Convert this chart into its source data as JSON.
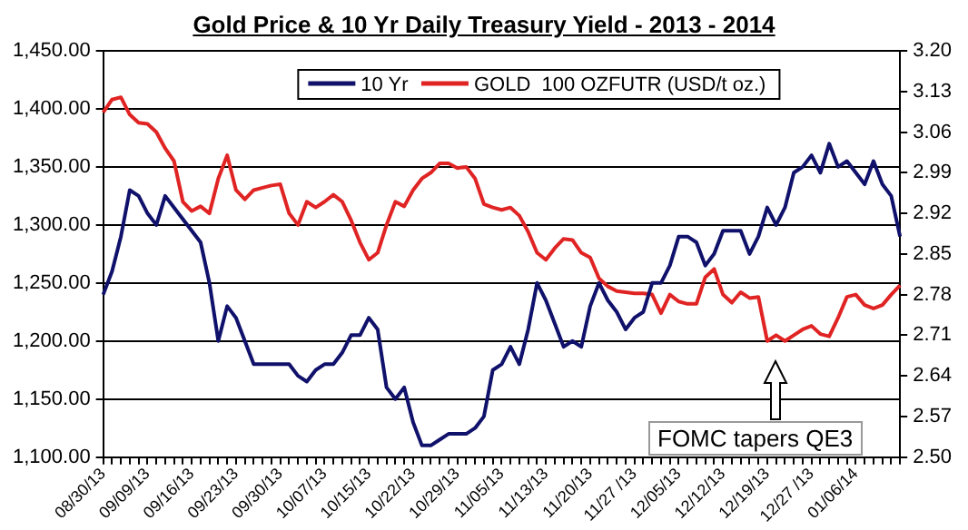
{
  "chart_data": {
    "type": "line",
    "title": "Gold Price & 10 Yr Daily Treasury Yield - 2013 -  2014",
    "categories": [
      "08/30/13",
      null,
      null,
      null,
      null,
      "09/09/13",
      null,
      null,
      null,
      null,
      "09/16/13",
      null,
      null,
      null,
      null,
      "09/23/13",
      null,
      null,
      null,
      null,
      "09/30/13",
      null,
      null,
      null,
      null,
      "10/07/13",
      null,
      null,
      null,
      null,
      "10/15/13",
      null,
      null,
      null,
      null,
      "10/22/13",
      null,
      null,
      null,
      null,
      "10/29/13",
      null,
      null,
      null,
      null,
      "11/05/13",
      null,
      null,
      null,
      null,
      "11/13/13",
      null,
      null,
      null,
      null,
      "11/20/13",
      null,
      null,
      null,
      null,
      "11/27 /13",
      null,
      null,
      null,
      null,
      "12/05/13",
      null,
      null,
      null,
      null,
      "12/12/13",
      null,
      null,
      null,
      null,
      "12/19/13",
      null,
      null,
      null,
      null,
      "12/27 /13",
      null,
      null,
      null,
      null,
      "01/06/14",
      null,
      null,
      null,
      null,
      null
    ],
    "series": [
      {
        "name": "10 Yr",
        "color": "#10116b",
        "axis": "y2",
        "values": [
          2.78,
          2.82,
          2.88,
          2.96,
          2.95,
          2.92,
          2.9,
          2.95,
          2.93,
          2.91,
          2.89,
          2.87,
          2.8,
          2.7,
          2.76,
          2.74,
          2.7,
          2.66,
          2.66,
          2.66,
          2.66,
          2.66,
          2.64,
          2.63,
          2.65,
          2.66,
          2.66,
          2.68,
          2.71,
          2.71,
          2.74,
          2.72,
          2.62,
          2.6,
          2.62,
          2.56,
          2.52,
          2.52,
          2.53,
          2.54,
          2.54,
          2.54,
          2.55,
          2.57,
          2.65,
          2.66,
          2.69,
          2.66,
          2.72,
          2.8,
          2.77,
          2.73,
          2.69,
          2.7,
          2.69,
          2.76,
          2.8,
          2.77,
          2.75,
          2.72,
          2.74,
          2.75,
          2.8,
          2.8,
          2.83,
          2.88,
          2.88,
          2.87,
          2.83,
          2.85,
          2.89,
          2.89,
          2.89,
          2.85,
          2.88,
          2.93,
          2.9,
          2.93,
          2.99,
          3.0,
          3.02,
          2.99,
          3.04,
          3.0,
          3.01,
          2.99,
          2.97,
          3.01,
          2.97,
          2.95,
          2.88
        ]
      },
      {
        "name": "GOLD  100 OZFUTR (USD/t oz.)",
        "color": "#e02424",
        "values": [
          1397,
          1408,
          1410,
          1395,
          1388,
          1387,
          1380,
          1366,
          1355,
          1320,
          1312,
          1316,
          1310,
          1340,
          1360,
          1330,
          1322,
          1330,
          1332,
          1334,
          1335,
          1310,
          1300,
          1320,
          1315,
          1320,
          1326,
          1320,
          1304,
          1285,
          1270,
          1276,
          1300,
          1320,
          1316,
          1330,
          1340,
          1345,
          1353,
          1353,
          1349,
          1350,
          1340,
          1318,
          1315,
          1313,
          1315,
          1308,
          1294,
          1276,
          1270,
          1280,
          1288,
          1287,
          1276,
          1272,
          1254,
          1247,
          1243,
          1242,
          1241,
          1241,
          1240,
          1224,
          1240,
          1234,
          1232,
          1232,
          1255,
          1262,
          1240,
          1233,
          1242,
          1237,
          1238,
          1200,
          1205,
          1200,
          1205,
          1210,
          1213,
          1206,
          1204,
          1220,
          1238,
          1240,
          1231,
          1228,
          1231,
          1240,
          1248
        ]
      }
    ],
    "ylim": [
      1100,
      1450
    ],
    "yticks": [
      {
        "value": 1100,
        "label": "1,100.00"
      },
      {
        "value": 1150,
        "label": "1,150.00"
      },
      {
        "value": 1200,
        "label": "1,200.00"
      },
      {
        "value": 1250,
        "label": "1,250.00"
      },
      {
        "value": 1300,
        "label": "1,300.00"
      },
      {
        "value": 1350,
        "label": "1,350.00"
      },
      {
        "value": 1400,
        "label": "1,400.00"
      },
      {
        "value": 1450,
        "label": "1,450.00"
      }
    ],
    "y2lim": [
      2.5,
      3.2
    ],
    "y2ticks": [
      {
        "value": 2.5,
        "label": "2.50"
      },
      2.57,
      2.64,
      2.71,
      2.78,
      2.85,
      2.92,
      2.99,
      3.06,
      3.13,
      {
        "value": 3.2,
        "label": "3.20"
      }
    ],
    "grid": "y",
    "legend": "top",
    "marker": "none",
    "line_style": "solid",
    "annotations": [
      "FOMC tapers QE3"
    ]
  }
}
